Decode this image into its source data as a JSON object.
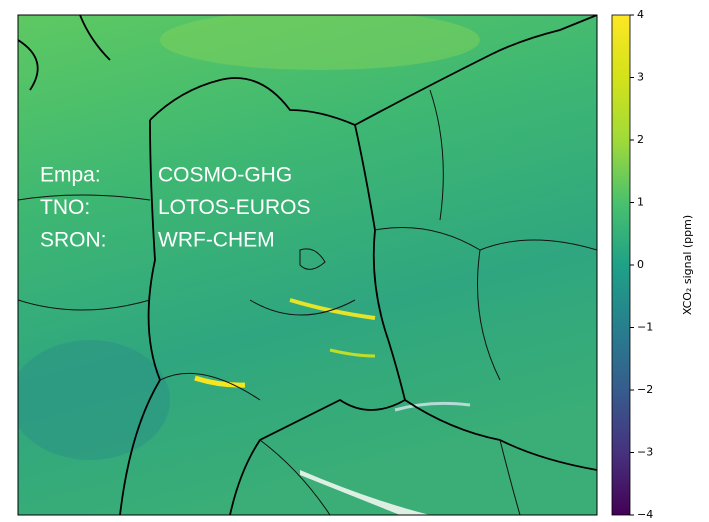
{
  "map": {
    "annotations": [
      {
        "institute": "Empa:",
        "model": "COSMO-GHG"
      },
      {
        "institute": "TNO:",
        "model": "LOTOS-EUROS"
      },
      {
        "institute": "SRON:",
        "model": "WRF-CHEM"
      }
    ]
  },
  "colorbar": {
    "label": "XCO₂ signal (ppm)",
    "lim": [
      -4,
      4
    ],
    "ticks": [
      {
        "value": -4,
        "label": "−4"
      },
      {
        "value": -3,
        "label": "−3"
      },
      {
        "value": -2,
        "label": "−2"
      },
      {
        "value": -1,
        "label": "−1"
      },
      0,
      1,
      2,
      3,
      4
    ]
  }
}
